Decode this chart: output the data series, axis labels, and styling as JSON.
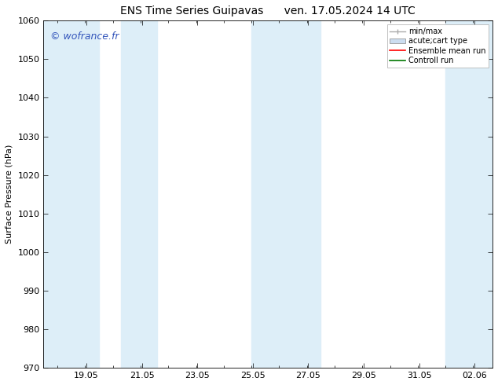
{
  "title_left": "ENS Time Series Guipavas",
  "title_right": "ven. 17.05.2024 14 UTC",
  "ylabel": "Surface Pressure (hPa)",
  "ylim": [
    970,
    1060
  ],
  "yticks": [
    970,
    980,
    990,
    1000,
    1010,
    1020,
    1030,
    1040,
    1050,
    1060
  ],
  "xtick_labels": [
    "19.05",
    "21.05",
    "23.05",
    "25.05",
    "27.05",
    "29.05",
    "31.05",
    "02.06"
  ],
  "xtick_positions": [
    19.05,
    21.05,
    23.05,
    25.05,
    27.05,
    29.05,
    31.05,
    33.06
  ],
  "xmin": 17.5,
  "xmax": 33.7,
  "shaded_regions": [
    {
      "xmin": 17.5,
      "xmax": 19.5
    },
    {
      "xmin": 20.3,
      "xmax": 21.6
    },
    {
      "xmin": 25.0,
      "xmax": 25.5
    },
    {
      "xmin": 25.5,
      "xmax": 27.5
    },
    {
      "xmin": 32.0,
      "xmax": 33.7
    }
  ],
  "shade_color": "#ddeef8",
  "watermark": "© wofrance.fr",
  "watermark_color": "#3355bb",
  "legend_labels": [
    "min/max",
    "acute;cart type",
    "Ensemble mean run",
    "Controll run"
  ],
  "legend_line_colors": [
    "#aaaaaa",
    "#ccddf0",
    "#ff0000",
    "#007700"
  ],
  "bg_color": "#ffffff",
  "title_fontsize": 10,
  "axis_label_fontsize": 8,
  "tick_fontsize": 8,
  "legend_fontsize": 7,
  "watermark_fontsize": 9
}
